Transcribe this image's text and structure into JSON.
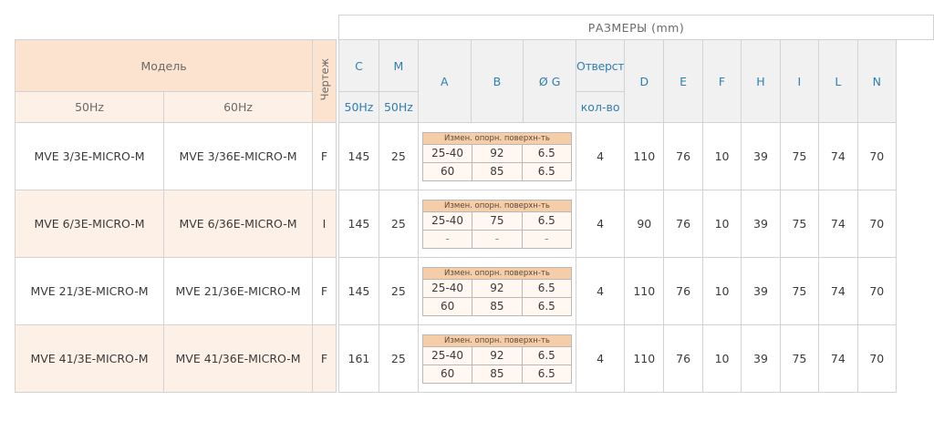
{
  "left_header": {
    "model_label": "Модель",
    "drawing_label": "Чертеж",
    "hz50": "50Hz",
    "hz60": "60Hz"
  },
  "right_header": {
    "title": "РАЗМЕРЫ (mm)",
    "c": "C",
    "m": "M",
    "a": "A",
    "b": "B",
    "g": "Ø G",
    "holes": "Отверст",
    "holes_sub": "кол-во",
    "c_sub": "50Hz",
    "m_sub": "50Hz",
    "d": "D",
    "e": "E",
    "f": "F",
    "h": "H",
    "i": "I",
    "l": "L",
    "n": "N"
  },
  "rows": [
    {
      "model50": "MVE 3/3E-MICRO-M",
      "model60": "MVE 3/36E-MICRO-M",
      "drawing": "F",
      "c": "145",
      "m": "25",
      "sub_header": "Измен. опорн. поверхн-ть",
      "sub": [
        [
          "25-40",
          "92",
          "6.5"
        ],
        [
          "60",
          "85",
          "6.5"
        ]
      ],
      "holes": "4",
      "d": "110",
      "e": "76",
      "f": "10",
      "h": "39",
      "i": "75",
      "l": "74",
      "n": "70"
    },
    {
      "model50": "MVE 6/3E-MICRO-M",
      "model60": "MVE 6/36E-MICRO-M",
      "drawing": "I",
      "c": "145",
      "m": "25",
      "sub_header": "Измен. опорн. поверхн-ть",
      "sub": [
        [
          "25-40",
          "75",
          "6.5"
        ],
        [
          "-",
          "-",
          "-"
        ]
      ],
      "holes": "4",
      "d": "90",
      "e": "76",
      "f": "10",
      "h": "39",
      "i": "75",
      "l": "74",
      "n": "70"
    },
    {
      "model50": "MVE 21/3E-MICRO-M",
      "model60": "MVE 21/36E-MICRO-M",
      "drawing": "F",
      "c": "145",
      "m": "25",
      "sub_header": "Измен. опорн. поверхн-ть",
      "sub": [
        [
          "25-40",
          "92",
          "6.5"
        ],
        [
          "60",
          "85",
          "6.5"
        ]
      ],
      "holes": "4",
      "d": "110",
      "e": "76",
      "f": "10",
      "h": "39",
      "i": "75",
      "l": "74",
      "n": "70"
    },
    {
      "model50": "MVE 41/3E-MICRO-M",
      "model60": "MVE 41/36E-MICRO-M",
      "drawing": "F",
      "c": "161",
      "m": "25",
      "sub_header": "Измен. опорн. поверхн-ть",
      "sub": [
        [
          "25-40",
          "92",
          "6.5"
        ],
        [
          "60",
          "85",
          "6.5"
        ]
      ],
      "holes": "4",
      "d": "110",
      "e": "76",
      "f": "10",
      "h": "39",
      "i": "75",
      "l": "74",
      "n": "70"
    }
  ]
}
